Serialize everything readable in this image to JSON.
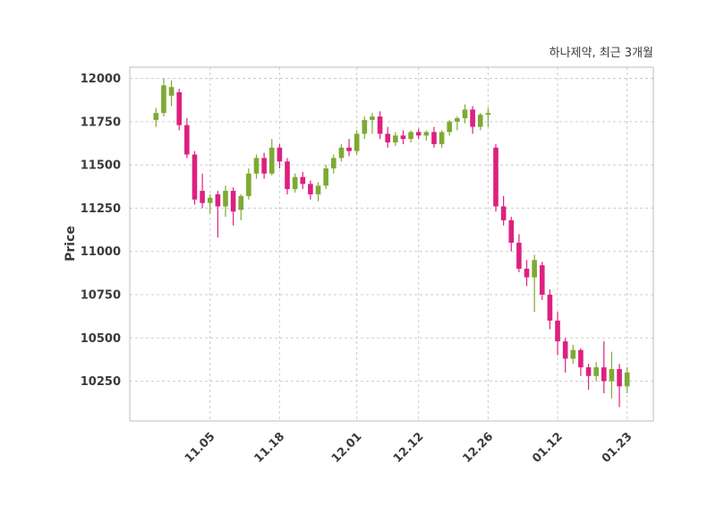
{
  "chart_data": {
    "type": "candlestick",
    "title": "하나제약, 최근 3개월",
    "ylabel": "Price",
    "xlabel": "",
    "grid": true,
    "legend": "none",
    "ylim": [
      10020,
      12065
    ],
    "yticks": [
      10250,
      10500,
      10750,
      11000,
      11250,
      11500,
      11750,
      12000
    ],
    "xticks": [
      {
        "index": 7,
        "label": "11.05"
      },
      {
        "index": 16,
        "label": "11.18"
      },
      {
        "index": 26,
        "label": "12.01"
      },
      {
        "index": 34,
        "label": "12.12"
      },
      {
        "index": 43,
        "label": "12.26"
      },
      {
        "index": 52,
        "label": "01.12"
      },
      {
        "index": 61,
        "label": "01.23"
      }
    ],
    "up_color": "#7daa33",
    "down_color": "#dd2080",
    "axis_text_color": "#3a3a3a",
    "grid_color": "#cccccc",
    "candles_format": [
      "open",
      "high",
      "low",
      "close"
    ],
    "candles": [
      [
        11760,
        11830,
        11720,
        11800
      ],
      [
        11800,
        12000,
        11780,
        11960
      ],
      [
        11900,
        11990,
        11840,
        11950
      ],
      [
        11920,
        11940,
        11700,
        11730
      ],
      [
        11730,
        11770,
        11540,
        11560
      ],
      [
        11560,
        11580,
        11270,
        11300
      ],
      [
        11350,
        11450,
        11250,
        11280
      ],
      [
        11280,
        11330,
        11220,
        11310
      ],
      [
        11330,
        11350,
        11080,
        11260
      ],
      [
        11260,
        11380,
        11200,
        11350
      ],
      [
        11350,
        11370,
        11150,
        11230
      ],
      [
        11240,
        11330,
        11180,
        11320
      ],
      [
        11320,
        11480,
        11300,
        11450
      ],
      [
        11450,
        11560,
        11420,
        11540
      ],
      [
        11540,
        11570,
        11420,
        11450
      ],
      [
        11450,
        11650,
        11440,
        11600
      ],
      [
        11600,
        11620,
        11480,
        11520
      ],
      [
        11520,
        11540,
        11330,
        11360
      ],
      [
        11360,
        11450,
        11340,
        11430
      ],
      [
        11430,
        11460,
        11360,
        11390
      ],
      [
        11390,
        11410,
        11300,
        11330
      ],
      [
        11330,
        11400,
        11290,
        11380
      ],
      [
        11380,
        11500,
        11360,
        11480
      ],
      [
        11480,
        11560,
        11450,
        11540
      ],
      [
        11540,
        11620,
        11520,
        11600
      ],
      [
        11600,
        11650,
        11550,
        11580
      ],
      [
        11580,
        11700,
        11560,
        11680
      ],
      [
        11680,
        11780,
        11650,
        11760
      ],
      [
        11760,
        11800,
        11680,
        11780
      ],
      [
        11780,
        11810,
        11650,
        11680
      ],
      [
        11680,
        11720,
        11600,
        11630
      ],
      [
        11630,
        11690,
        11610,
        11670
      ],
      [
        11670,
        11700,
        11620,
        11650
      ],
      [
        11650,
        11700,
        11630,
        11690
      ],
      [
        11690,
        11710,
        11650,
        11670
      ],
      [
        11670,
        11700,
        11640,
        11690
      ],
      [
        11690,
        11720,
        11600,
        11620
      ],
      [
        11620,
        11700,
        11600,
        11690
      ],
      [
        11690,
        11760,
        11670,
        11750
      ],
      [
        11750,
        11780,
        11700,
        11770
      ],
      [
        11770,
        11850,
        11740,
        11820
      ],
      [
        11820,
        11840,
        11680,
        11720
      ],
      [
        11720,
        11800,
        11700,
        11790
      ],
      [
        11790,
        11830,
        11720,
        11800
      ],
      [
        11600,
        11620,
        11230,
        11260
      ],
      [
        11260,
        11320,
        11150,
        11180
      ],
      [
        11180,
        11200,
        11000,
        11050
      ],
      [
        11050,
        11100,
        10880,
        10900
      ],
      [
        10900,
        10950,
        10800,
        10850
      ],
      [
        10850,
        10980,
        10650,
        10950
      ],
      [
        10920,
        10940,
        10720,
        10750
      ],
      [
        10750,
        10780,
        10550,
        10600
      ],
      [
        10600,
        10650,
        10400,
        10480
      ],
      [
        10480,
        10500,
        10300,
        10380
      ],
      [
        10380,
        10460,
        10350,
        10430
      ],
      [
        10430,
        10440,
        10280,
        10330
      ],
      [
        10330,
        10350,
        10200,
        10280
      ],
      [
        10280,
        10360,
        10250,
        10330
      ],
      [
        10330,
        10480,
        10180,
        10250
      ],
      [
        10250,
        10420,
        10150,
        10320
      ],
      [
        10320,
        10350,
        10100,
        10220
      ],
      [
        10220,
        10330,
        10180,
        10300
      ]
    ]
  }
}
